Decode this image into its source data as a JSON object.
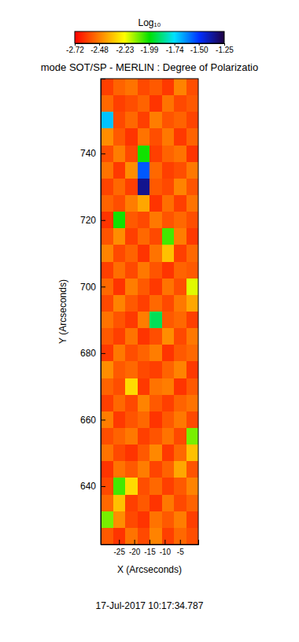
{
  "chart_data": {
    "type": "heatmap",
    "title": "mode SOT/SP - MERLIN : Degree of Polarizatio",
    "x_label": "X (Arcseconds)",
    "y_label": "Y (Arcseconds)",
    "annotation": "17-Jul-2017 10:17:34.787",
    "x": [
      -29,
      -25,
      -21,
      -17,
      -13,
      -9,
      -5,
      -1
    ],
    "y": [
      625,
      630,
      635,
      640,
      645,
      650,
      655,
      660,
      665,
      670,
      675,
      680,
      685,
      690,
      695,
      700,
      705,
      710,
      715,
      720,
      725,
      730,
      735,
      740,
      745,
      750,
      755,
      760
    ],
    "z": [
      [
        -2.55,
        -2.62,
        -2.5,
        -2.58,
        -2.47,
        -2.6,
        -2.52,
        -2.57
      ],
      [
        -2.1,
        -2.45,
        -2.58,
        -2.62,
        -2.5,
        -2.55,
        -2.48,
        -2.6
      ],
      [
        -2.52,
        -2.35,
        -2.6,
        -2.55,
        -2.62,
        -2.49,
        -2.58,
        -2.53
      ],
      [
        -2.58,
        -2.05,
        -2.3,
        -2.57,
        -2.52,
        -2.6,
        -2.55,
        -2.47
      ],
      [
        -2.62,
        -2.5,
        -2.55,
        -2.48,
        -2.59,
        -2.53,
        -2.4,
        -2.56
      ],
      [
        -2.5,
        -2.58,
        -2.62,
        -2.55,
        -2.46,
        -2.61,
        -2.52,
        -2.35
      ],
      [
        -2.57,
        -2.53,
        -2.49,
        -2.6,
        -2.56,
        -2.5,
        -2.58,
        -2.1
      ],
      [
        -2.48,
        -2.61,
        -2.56,
        -2.52,
        -2.62,
        -2.55,
        -2.49,
        -2.58
      ],
      [
        -2.6,
        -2.52,
        -2.58,
        -2.47,
        -2.55,
        -2.6,
        -2.53,
        -2.5
      ],
      [
        -2.53,
        -2.57,
        -2.3,
        -2.61,
        -2.5,
        -2.48,
        -2.62,
        -2.55
      ],
      [
        -2.45,
        -2.55,
        -2.52,
        -2.58,
        -2.6,
        -2.53,
        -2.47,
        -2.61
      ],
      [
        -2.61,
        -2.49,
        -2.57,
        -2.53,
        -2.48,
        -2.62,
        -2.55,
        -2.52
      ],
      [
        -2.55,
        -2.6,
        -2.5,
        -2.62,
        -2.57,
        -2.45,
        -2.58,
        -2.49
      ],
      [
        -2.5,
        -2.56,
        -2.61,
        -2.48,
        -1.9,
        -2.55,
        -2.52,
        -2.6
      ],
      [
        -2.58,
        -2.47,
        -2.55,
        -2.6,
        -2.52,
        -2.58,
        -2.49,
        -2.4
      ],
      [
        -2.52,
        -2.62,
        -2.48,
        -2.55,
        -2.61,
        -2.5,
        -2.57,
        -2.2
      ],
      [
        -2.6,
        -2.51,
        -2.58,
        -2.49,
        -2.56,
        -2.62,
        -2.53,
        -2.55
      ],
      [
        -2.47,
        -2.58,
        -2.53,
        -2.62,
        -2.5,
        -2.35,
        -2.6,
        -2.52
      ],
      [
        -2.56,
        -2.45,
        -2.6,
        -2.52,
        -2.58,
        -2.05,
        -2.48,
        -2.61
      ],
      [
        -2.62,
        -2.0,
        -2.55,
        -2.58,
        -2.49,
        -2.56,
        -2.52,
        -2.57
      ],
      [
        -2.53,
        -2.57,
        -2.48,
        -2.4,
        -2.62,
        -2.51,
        -2.6,
        -2.5
      ],
      [
        -2.59,
        -2.52,
        -2.6,
        -1.35,
        -2.55,
        -2.58,
        -2.47,
        -2.56
      ],
      [
        -2.5,
        -2.61,
        -2.45,
        -1.55,
        -2.52,
        -2.6,
        -2.57,
        -2.49
      ],
      [
        -2.57,
        -2.48,
        -2.58,
        -2.0,
        -2.6,
        -2.53,
        -2.5,
        -2.62
      ],
      [
        -2.45,
        -2.55,
        -2.62,
        -2.5,
        -2.57,
        -2.49,
        -2.61,
        -2.53
      ],
      [
        -1.7,
        -2.58,
        -2.52,
        -2.6,
        -2.48,
        -2.56,
        -2.53,
        -2.59
      ],
      [
        -2.52,
        -2.6,
        -2.57,
        -2.53,
        -2.62,
        -2.5,
        -2.58,
        -2.55
      ],
      [
        -2.6,
        -2.53,
        -2.5,
        -2.58,
        -2.55,
        -2.61,
        -2.47,
        -2.57
      ]
    ],
    "xlim": [
      -31,
      1
    ],
    "ylim": [
      622.5,
      762.5
    ],
    "xticks": [
      -25,
      -20,
      -15,
      -10,
      -5
    ],
    "yticks": [
      640,
      660,
      680,
      700,
      720,
      740
    ],
    "colorbar": {
      "title": "Log₁₀",
      "range": [
        -2.72,
        -1.25
      ],
      "ticks": [
        -2.72,
        -2.48,
        -2.23,
        -1.99,
        -1.74,
        {
          "value": -1.5,
          "label": "-1.50"
        },
        -1.25
      ]
    }
  }
}
